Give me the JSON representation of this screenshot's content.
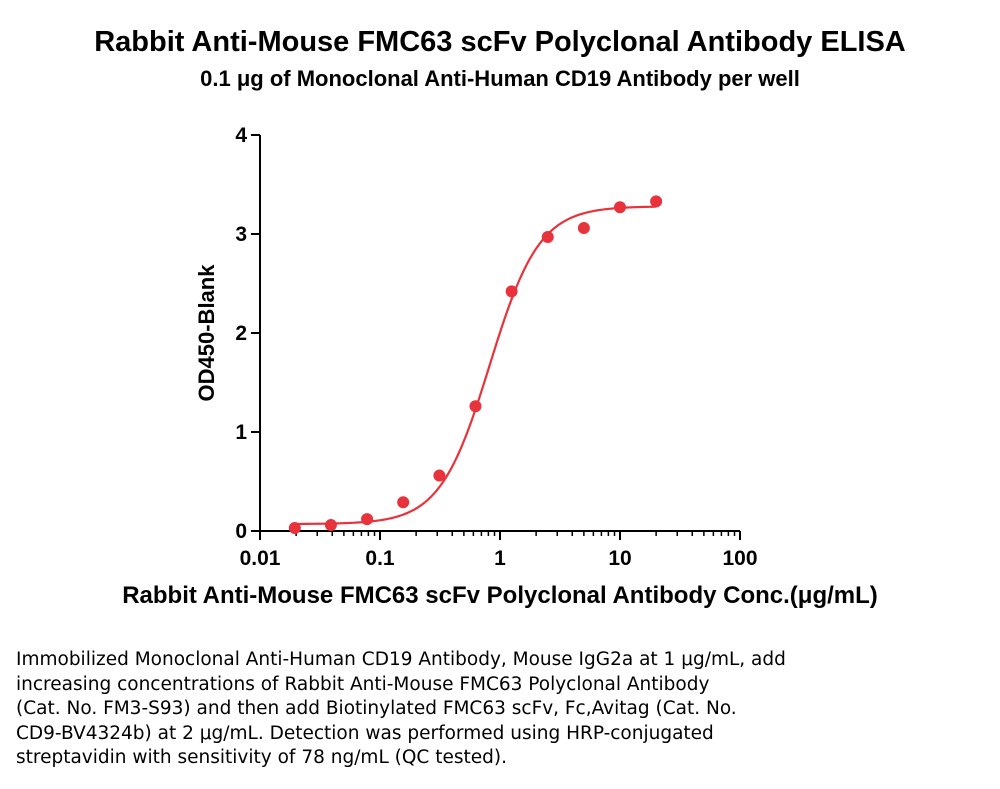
{
  "chart_data": {
    "type": "scatter",
    "title": "Rabbit Anti-Mouse FMC63 scFv Polyclonal Antibody ELISA",
    "subtitle": "0.1 μg of Monoclonal Anti-Human CD19 Antibody per well",
    "xlabel": "Rabbit Anti-Mouse FMC63 scFv Polyclonal Antibody Conc.(μg/mL)",
    "ylabel": "OD450-Blank",
    "xscale": "log",
    "xlim": [
      0.01,
      100
    ],
    "ylim": [
      0,
      4
    ],
    "x_ticks": [
      0.01,
      0.1,
      1,
      10,
      100
    ],
    "x_tick_labels": [
      "0.01",
      "0.1",
      "1",
      "10",
      "100"
    ],
    "y_ticks": [
      0,
      1,
      2,
      3,
      4
    ],
    "y_tick_labels": [
      "0",
      "1",
      "2",
      "3",
      "4"
    ],
    "grid": false,
    "series": [
      {
        "color": "#e8323c",
        "x": [
          0.0195,
          0.039,
          0.078,
          0.156,
          0.3125,
          0.625,
          1.25,
          2.5,
          5,
          10,
          20
        ],
        "y": [
          0.03,
          0.06,
          0.12,
          0.29,
          0.56,
          1.26,
          2.42,
          2.97,
          3.06,
          3.27,
          3.33
        ]
      }
    ],
    "fit_curve": {
      "model": "4PL",
      "bottom": 0.07,
      "top": 3.28,
      "ec50": 0.82,
      "hill": 2.1,
      "x_range": [
        0.0195,
        20
      ]
    }
  },
  "caption": {
    "lines": [
      "Immobilized Monoclonal Anti-Human CD19 Antibody, Mouse IgG2a at 1 μg/mL, add",
      "increasing concentrations of Rabbit Anti-Mouse FMC63 Polyclonal Antibody",
      "(Cat. No. FM3-S93) and then add Biotinylated FMC63 scFv, Fc,Avitag (Cat. No.",
      "CD9-BV4324b) at 2 μg/mL. Detection was performed using HRP-conjugated",
      "streptavidin with sensitivity of 78 ng/mL (QC tested)."
    ]
  }
}
